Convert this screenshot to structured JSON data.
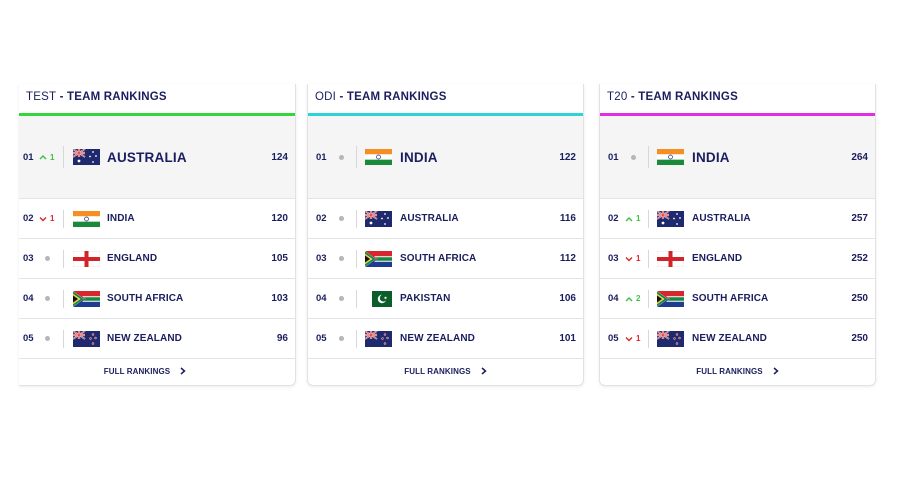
{
  "colors": {
    "navy": "#1b1e5e",
    "up": "#3fbf3f",
    "down": "#d9262e",
    "neutral": "#b5b5bb"
  },
  "panels": [
    {
      "format": "TEST",
      "title_suffix": " - TEAM RANKINGS",
      "accent": "#35d63d",
      "link_label": "FULL RANKINGS",
      "rows": [
        {
          "pos": "01",
          "move": "up",
          "change": "1",
          "flag": "australia",
          "team": "AUSTRALIA",
          "rating": "124"
        },
        {
          "pos": "02",
          "move": "down",
          "change": "1",
          "flag": "india",
          "team": "INDIA",
          "rating": "120"
        },
        {
          "pos": "03",
          "move": "none",
          "change": "",
          "flag": "england",
          "team": "ENGLAND",
          "rating": "105"
        },
        {
          "pos": "04",
          "move": "none",
          "change": "",
          "flag": "south-africa",
          "team": "SOUTH AFRICA",
          "rating": "103"
        },
        {
          "pos": "05",
          "move": "none",
          "change": "",
          "flag": "new-zealand",
          "team": "NEW ZEALAND",
          "rating": "96"
        }
      ]
    },
    {
      "format": "ODI",
      "title_suffix": " - TEAM RANKINGS",
      "accent": "#2bd3d6",
      "link_label": "FULL RANKINGS",
      "rows": [
        {
          "pos": "01",
          "move": "none",
          "change": "",
          "flag": "india",
          "team": "INDIA",
          "rating": "122"
        },
        {
          "pos": "02",
          "move": "none",
          "change": "",
          "flag": "australia",
          "team": "AUSTRALIA",
          "rating": "116"
        },
        {
          "pos": "03",
          "move": "none",
          "change": "",
          "flag": "south-africa",
          "team": "SOUTH AFRICA",
          "rating": "112"
        },
        {
          "pos": "04",
          "move": "none",
          "change": "",
          "flag": "pakistan",
          "team": "PAKISTAN",
          "rating": "106"
        },
        {
          "pos": "05",
          "move": "none",
          "change": "",
          "flag": "new-zealand",
          "team": "NEW ZEALAND",
          "rating": "101"
        }
      ]
    },
    {
      "format": "T20",
      "title_suffix": " - TEAM RANKINGS",
      "accent": "#e22de0",
      "link_label": "FULL RANKINGS",
      "rows": [
        {
          "pos": "01",
          "move": "none",
          "change": "",
          "flag": "india",
          "team": "INDIA",
          "rating": "264"
        },
        {
          "pos": "02",
          "move": "up",
          "change": "1",
          "flag": "australia",
          "team": "AUSTRALIA",
          "rating": "257"
        },
        {
          "pos": "03",
          "move": "down",
          "change": "1",
          "flag": "england",
          "team": "ENGLAND",
          "rating": "252"
        },
        {
          "pos": "04",
          "move": "up",
          "change": "2",
          "flag": "south-africa",
          "team": "SOUTH AFRICA",
          "rating": "250"
        },
        {
          "pos": "05",
          "move": "down",
          "change": "1",
          "flag": "new-zealand",
          "team": "NEW ZEALAND",
          "rating": "250"
        }
      ]
    }
  ]
}
